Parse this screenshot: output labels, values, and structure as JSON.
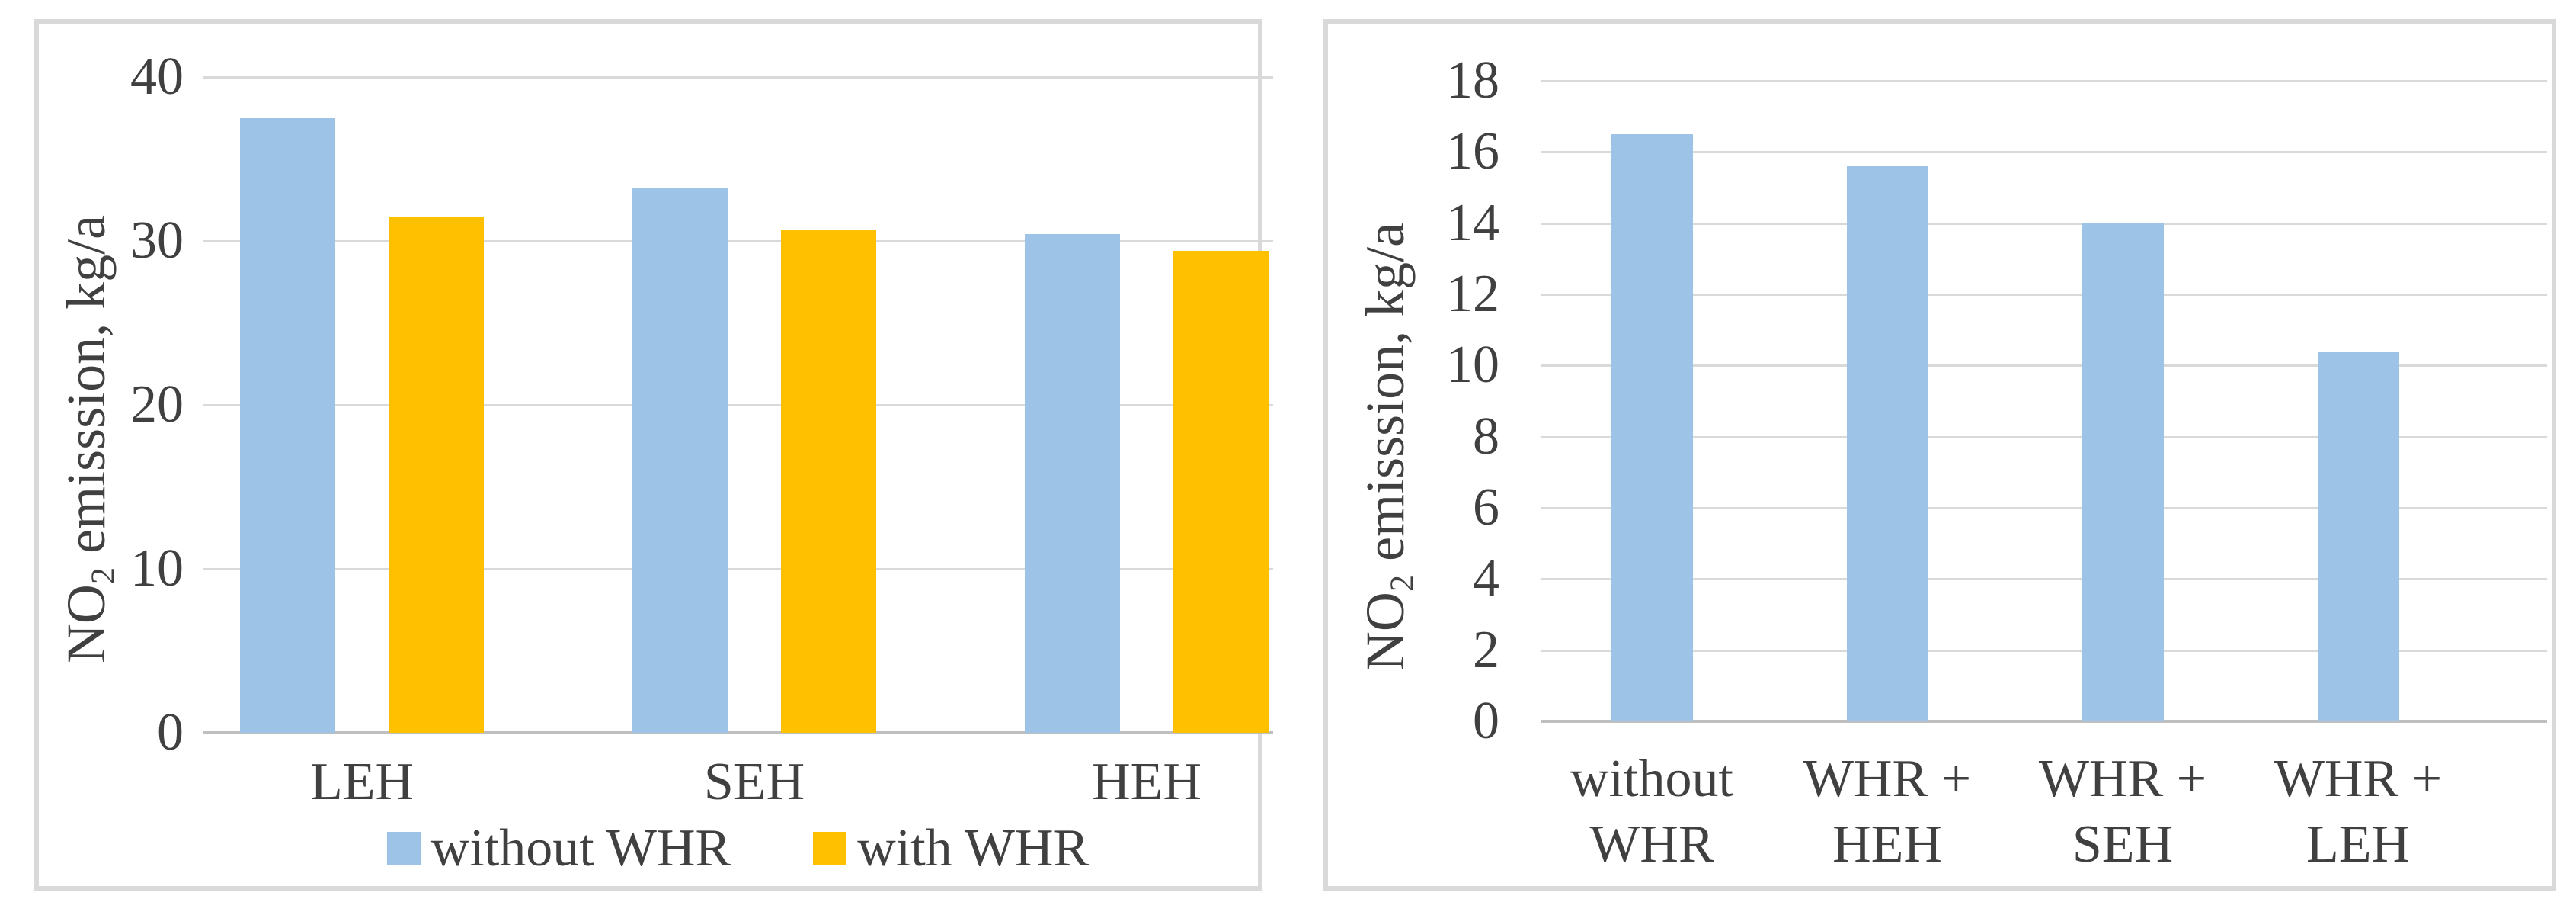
{
  "figure": {
    "background": "#FFFFFF",
    "panel_border_color": "#D9D9D9"
  },
  "colors": {
    "blue": "#9DC3E6",
    "orange": "#FFC000",
    "gridline": "#D9D9D9",
    "axis_line": "#BFBFBF",
    "text": "#404040"
  },
  "chart_data": [
    {
      "type": "bar",
      "title": "",
      "ylabel": {
        "prefix": "NO",
        "sub": "2",
        "suffix": " emisssion, kg/a"
      },
      "categories": [
        "LEH",
        "SEH",
        "HEH"
      ],
      "series": [
        {
          "name": "without WHR",
          "color_key": "blue",
          "values": [
            37.5,
            33.2,
            30.4
          ]
        },
        {
          "name": "with WHR",
          "color_key": "orange",
          "values": [
            31.5,
            30.7,
            29.4
          ]
        }
      ],
      "ylim": [
        0,
        40
      ],
      "yticks": [
        0,
        10,
        20,
        30,
        40
      ],
      "grid": true,
      "legend_position": "bottom"
    },
    {
      "type": "bar",
      "title": "",
      "ylabel": {
        "prefix": "NO",
        "sub": "2",
        "suffix": " emisssion, kg/a"
      },
      "categories": [
        [
          "without",
          "WHR"
        ],
        [
          "WHR +",
          "HEH"
        ],
        [
          "WHR +",
          "SEH"
        ],
        [
          "WHR +",
          "LEH"
        ]
      ],
      "series": [
        {
          "name": "",
          "color_key": "blue",
          "values": [
            16.5,
            15.6,
            14.0,
            10.4
          ]
        }
      ],
      "ylim": [
        0,
        18
      ],
      "yticks": [
        0,
        2,
        4,
        6,
        8,
        10,
        12,
        14,
        16,
        18
      ],
      "grid": true,
      "legend_position": "none"
    }
  ]
}
